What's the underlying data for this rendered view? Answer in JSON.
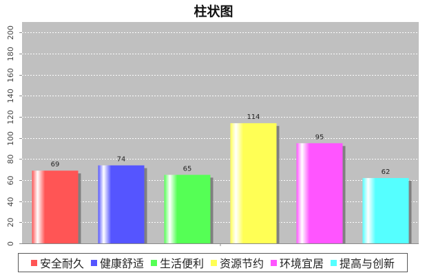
{
  "chart_data": {
    "type": "bar",
    "title": "柱状图",
    "categories": [
      "安全耐久",
      "健康舒适",
      "生活便利",
      "资源节约",
      "环境宜居",
      "提高与创新"
    ],
    "values": [
      69,
      74,
      65,
      114,
      95,
      62
    ],
    "colors": [
      "#ff5555",
      "#5555ff",
      "#55ff55",
      "#ffff55",
      "#ff55ff",
      "#55ffff"
    ],
    "ylim": [
      0,
      210
    ],
    "yticks": [
      0,
      20,
      40,
      60,
      80,
      100,
      120,
      140,
      160,
      180,
      200
    ],
    "xlabel": "",
    "ylabel": "",
    "grid": true,
    "legend_position": "bottom",
    "plot_background": "#c0c0c0"
  }
}
